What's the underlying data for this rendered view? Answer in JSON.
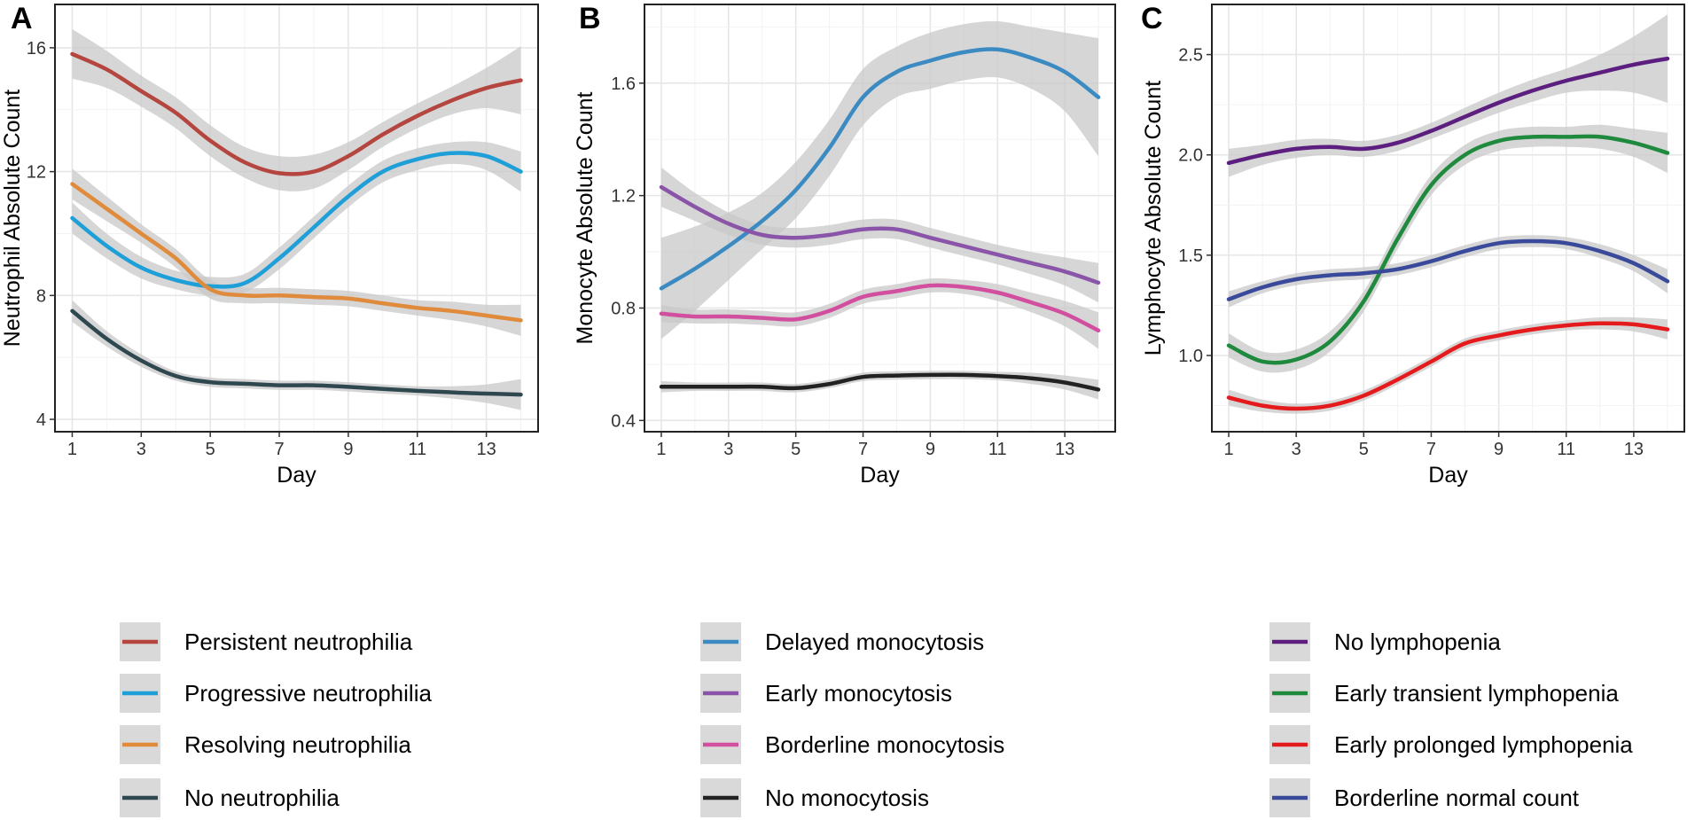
{
  "chart_data": [
    {
      "panel": "A",
      "type": "line",
      "xlabel": "Day",
      "ylabel": "Neutrophil Absolute Count",
      "xlim": [
        0.5,
        14.5
      ],
      "ylim": [
        3.6,
        17.4
      ],
      "xticks": [
        1,
        3,
        5,
        7,
        9,
        11,
        13
      ],
      "yticks": [
        4,
        8,
        12,
        16
      ],
      "x": [
        1,
        2,
        3,
        4,
        5,
        6,
        7,
        8,
        9,
        10,
        11,
        12,
        13,
        14
      ],
      "series": [
        {
          "name": "Persistent neutrophilia",
          "color": "#b5463f",
          "values": [
            15.8,
            15.3,
            14.6,
            13.9,
            13.0,
            12.3,
            11.95,
            12.0,
            12.5,
            13.2,
            13.8,
            14.3,
            14.7,
            14.95
          ],
          "ci": [
            0.8,
            0.6,
            0.5,
            0.5,
            0.5,
            0.5,
            0.55,
            0.55,
            0.45,
            0.4,
            0.4,
            0.45,
            0.65,
            1.1
          ]
        },
        {
          "name": "Progressive neutrophilia",
          "color": "#1e9fd8",
          "values": [
            10.5,
            9.6,
            8.9,
            8.5,
            8.3,
            8.4,
            9.2,
            10.2,
            11.2,
            12.0,
            12.4,
            12.6,
            12.5,
            12.0
          ],
          "ci": [
            0.5,
            0.4,
            0.35,
            0.3,
            0.3,
            0.3,
            0.35,
            0.35,
            0.35,
            0.35,
            0.35,
            0.35,
            0.45,
            0.65
          ]
        },
        {
          "name": "Resolving neutrophilia",
          "color": "#e08a3c",
          "values": [
            11.6,
            10.8,
            10.0,
            9.2,
            8.2,
            8.0,
            8.0,
            7.95,
            7.9,
            7.75,
            7.6,
            7.5,
            7.35,
            7.2
          ],
          "ci": [
            0.5,
            0.4,
            0.3,
            0.3,
            0.3,
            0.25,
            0.25,
            0.25,
            0.25,
            0.25,
            0.25,
            0.3,
            0.35,
            0.5
          ]
        },
        {
          "name": "No neutrophilia",
          "color": "#2f4850",
          "values": [
            7.5,
            6.6,
            5.9,
            5.4,
            5.2,
            5.15,
            5.1,
            5.1,
            5.05,
            4.98,
            4.92,
            4.87,
            4.83,
            4.8
          ],
          "ci": [
            0.35,
            0.25,
            0.2,
            0.15,
            0.15,
            0.15,
            0.15,
            0.15,
            0.15,
            0.15,
            0.15,
            0.2,
            0.3,
            0.5
          ]
        }
      ]
    },
    {
      "panel": "B",
      "type": "line",
      "xlabel": "Day",
      "ylabel": "Monocyte Absolute Count",
      "xlim": [
        0.5,
        14.5
      ],
      "ylim": [
        0.36,
        1.88
      ],
      "xticks": [
        1,
        3,
        5,
        7,
        9,
        11,
        13
      ],
      "yticks": [
        0.4,
        0.8,
        1.2,
        1.6
      ],
      "yticklabels": [
        "0.4",
        "0.8",
        "1.2",
        "1.6"
      ],
      "x": [
        1,
        2,
        3,
        4,
        5,
        6,
        7,
        8,
        9,
        10,
        11,
        12,
        13,
        14
      ],
      "series": [
        {
          "name": "Delayed monocytosis",
          "color": "#3b8bc2",
          "values": [
            0.87,
            0.94,
            1.02,
            1.11,
            1.22,
            1.37,
            1.55,
            1.64,
            1.68,
            1.71,
            1.72,
            1.69,
            1.64,
            1.55
          ],
          "ci": [
            0.18,
            0.15,
            0.12,
            0.1,
            0.1,
            0.1,
            0.1,
            0.09,
            0.1,
            0.1,
            0.1,
            0.11,
            0.14,
            0.21
          ]
        },
        {
          "name": "Early monocytosis",
          "color": "#8a55a8",
          "values": [
            1.23,
            1.16,
            1.1,
            1.06,
            1.05,
            1.06,
            1.08,
            1.08,
            1.05,
            1.02,
            0.99,
            0.96,
            0.93,
            0.89
          ],
          "ci": [
            0.07,
            0.05,
            0.04,
            0.035,
            0.035,
            0.035,
            0.035,
            0.035,
            0.035,
            0.035,
            0.035,
            0.04,
            0.05,
            0.07
          ]
        },
        {
          "name": "Borderline monocytosis",
          "color": "#d24fa0",
          "values": [
            0.78,
            0.77,
            0.77,
            0.765,
            0.76,
            0.79,
            0.84,
            0.86,
            0.88,
            0.875,
            0.855,
            0.82,
            0.78,
            0.72
          ],
          "ci": [
            0.03,
            0.025,
            0.025,
            0.025,
            0.025,
            0.025,
            0.025,
            0.025,
            0.025,
            0.025,
            0.03,
            0.035,
            0.045,
            0.065
          ]
        },
        {
          "name": "No monocytosis",
          "color": "#222222",
          "values": [
            0.52,
            0.52,
            0.52,
            0.52,
            0.515,
            0.53,
            0.555,
            0.56,
            0.562,
            0.562,
            0.558,
            0.55,
            0.535,
            0.51
          ],
          "ci": [
            0.02,
            0.015,
            0.015,
            0.015,
            0.015,
            0.015,
            0.015,
            0.015,
            0.015,
            0.015,
            0.015,
            0.02,
            0.025,
            0.035
          ]
        }
      ]
    },
    {
      "panel": "C",
      "type": "line",
      "xlabel": "Day",
      "ylabel": "Lymphocyte Absolute Count",
      "xlim": [
        0.5,
        14.5
      ],
      "ylim": [
        0.62,
        2.75
      ],
      "xticks": [
        1,
        3,
        5,
        7,
        9,
        11,
        13
      ],
      "yticks": [
        1.0,
        1.5,
        2.0,
        2.5
      ],
      "yticklabels": [
        "1.0",
        "1.5",
        "2.0",
        "2.5"
      ],
      "x": [
        1,
        2,
        3,
        4,
        5,
        6,
        7,
        8,
        9,
        10,
        11,
        12,
        13,
        14
      ],
      "series": [
        {
          "name": "No lymphopenia",
          "color": "#5c1f80",
          "values": [
            1.96,
            2.0,
            2.03,
            2.04,
            2.03,
            2.06,
            2.12,
            2.19,
            2.26,
            2.32,
            2.37,
            2.41,
            2.45,
            2.48
          ],
          "ci": [
            0.07,
            0.05,
            0.045,
            0.04,
            0.04,
            0.04,
            0.04,
            0.045,
            0.05,
            0.055,
            0.06,
            0.09,
            0.14,
            0.22
          ]
        },
        {
          "name": "Early transient lymphopenia",
          "color": "#1f8a3d",
          "values": [
            1.05,
            0.97,
            0.98,
            1.07,
            1.27,
            1.58,
            1.85,
            2.0,
            2.07,
            2.09,
            2.09,
            2.09,
            2.06,
            2.01
          ],
          "ci": [
            0.06,
            0.05,
            0.05,
            0.05,
            0.05,
            0.05,
            0.05,
            0.05,
            0.05,
            0.05,
            0.05,
            0.06,
            0.07,
            0.1
          ]
        },
        {
          "name": "Early prolonged lymphopenia",
          "color": "#e41a1c",
          "values": [
            0.79,
            0.75,
            0.735,
            0.75,
            0.8,
            0.88,
            0.97,
            1.06,
            1.1,
            1.13,
            1.15,
            1.16,
            1.155,
            1.13
          ],
          "ci": [
            0.04,
            0.03,
            0.025,
            0.025,
            0.025,
            0.025,
            0.025,
            0.025,
            0.025,
            0.025,
            0.025,
            0.03,
            0.035,
            0.05
          ]
        },
        {
          "name": "Borderline normal count",
          "color": "#3a4a9a",
          "values": [
            1.28,
            1.34,
            1.38,
            1.4,
            1.41,
            1.43,
            1.47,
            1.52,
            1.56,
            1.57,
            1.56,
            1.52,
            1.46,
            1.37
          ],
          "ci": [
            0.04,
            0.03,
            0.03,
            0.03,
            0.03,
            0.03,
            0.03,
            0.03,
            0.03,
            0.03,
            0.03,
            0.035,
            0.04,
            0.06
          ]
        }
      ]
    }
  ],
  "style": {
    "ribbon_color": "#c8c8c8",
    "panel_background": "#ffffff",
    "major_grid_color": "#e6e6e6",
    "minor_grid_color": "#f2f2f2",
    "legend_key_background": "#d9d9d9"
  }
}
